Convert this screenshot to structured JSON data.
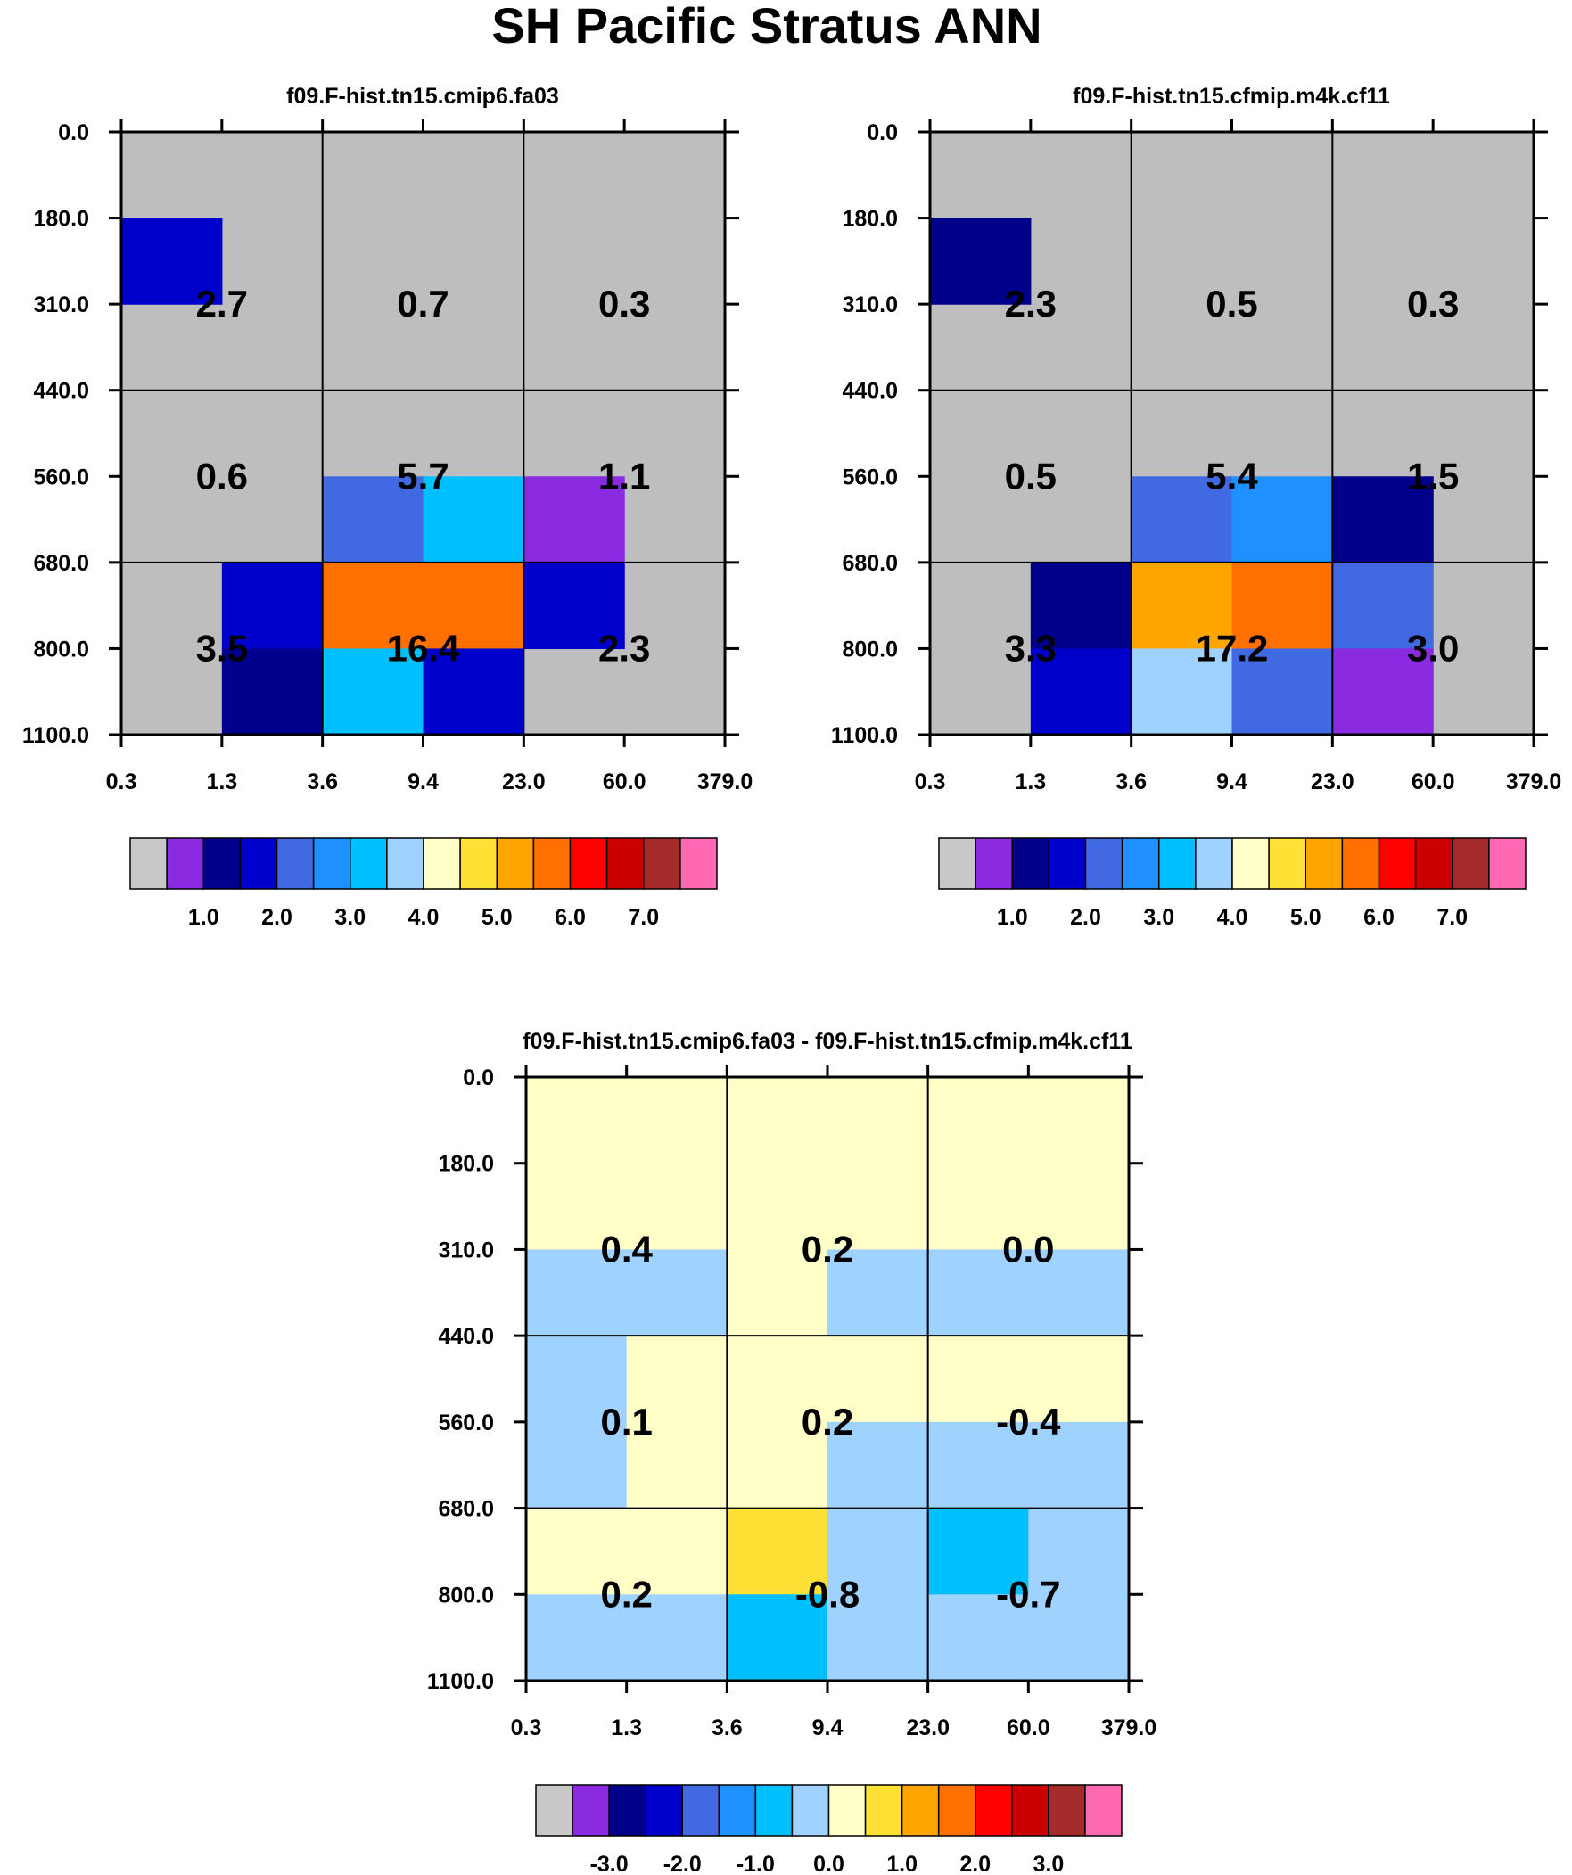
{
  "title": "SH Pacific Stratus ANN",
  "axes": {
    "x_ticks": [
      "0.3",
      "1.3",
      "3.6",
      "9.4",
      "23.0",
      "60.0",
      "379.0"
    ],
    "y_ticks": [
      "0.0",
      "180.0",
      "310.0",
      "440.0",
      "560.0",
      "680.0",
      "800.0",
      "1100.0"
    ]
  },
  "colors": {
    "grey": "#bebebe",
    "levels": [
      "#c8c8c8",
      "#8a2be2",
      "#00008b",
      "#0000cd",
      "#4169e1",
      "#1e90ff",
      "#00bfff",
      "#a0d2ff",
      "#ffffc8",
      "#ffe135",
      "#ffa500",
      "#ff7000",
      "#ff0000",
      "#cd0000",
      "#a52a2a",
      "#ff69b4"
    ]
  },
  "chart_data": [
    {
      "type": "heatmap",
      "title": "f09.F-hist.tn15.cmip6.fa03",
      "x_edges": [
        "0.3",
        "1.3",
        "3.6",
        "9.4",
        "23.0",
        "60.0",
        "379.0"
      ],
      "y_edges": [
        "0.0",
        "180.0",
        "310.0",
        "440.0",
        "560.0",
        "680.0",
        "800.0",
        "1100.0"
      ],
      "cell_levels": [
        [
          -1,
          -1,
          -1,
          -1,
          -1,
          -1
        ],
        [
          3,
          -1,
          -1,
          -1,
          -1,
          -1
        ],
        [
          -1,
          -1,
          -1,
          -1,
          -1,
          -1
        ],
        [
          -1,
          -1,
          -1,
          -1,
          -1,
          -1
        ],
        [
          -1,
          -1,
          4,
          6,
          1,
          -1
        ],
        [
          -1,
          3,
          11,
          11,
          3,
          -1
        ],
        [
          -1,
          2,
          6,
          3,
          -1,
          -1
        ]
      ],
      "box_values": [
        [
          "2.7",
          "0.7",
          "0.3"
        ],
        [
          "0.6",
          "5.7",
          "1.1"
        ],
        [
          "3.5",
          "16.4",
          "2.3"
        ]
      ],
      "colorbar_labels": [
        "1.0",
        "2.0",
        "3.0",
        "4.0",
        "5.0",
        "6.0",
        "7.0"
      ]
    },
    {
      "type": "heatmap",
      "title": "f09.F-hist.tn15.cfmip.m4k.cf11",
      "x_edges": [
        "0.3",
        "1.3",
        "3.6",
        "9.4",
        "23.0",
        "60.0",
        "379.0"
      ],
      "y_edges": [
        "0.0",
        "180.0",
        "310.0",
        "440.0",
        "560.0",
        "680.0",
        "800.0",
        "1100.0"
      ],
      "cell_levels": [
        [
          -1,
          -1,
          -1,
          -1,
          -1,
          -1
        ],
        [
          2,
          -1,
          -1,
          -1,
          -1,
          -1
        ],
        [
          -1,
          -1,
          -1,
          -1,
          -1,
          -1
        ],
        [
          -1,
          -1,
          -1,
          -1,
          -1,
          -1
        ],
        [
          -1,
          -1,
          4,
          5,
          2,
          -1
        ],
        [
          -1,
          2,
          10,
          11,
          4,
          -1
        ],
        [
          -1,
          3,
          7,
          4,
          1,
          -1
        ]
      ],
      "box_values": [
        [
          "2.3",
          "0.5",
          "0.3"
        ],
        [
          "0.5",
          "5.4",
          "1.5"
        ],
        [
          "3.3",
          "17.2",
          "3.0"
        ]
      ],
      "colorbar_labels": [
        "1.0",
        "2.0",
        "3.0",
        "4.0",
        "5.0",
        "6.0",
        "7.0"
      ]
    },
    {
      "type": "heatmap",
      "title": "f09.F-hist.tn15.cmip6.fa03 - f09.F-hist.tn15.cfmip.m4k.cf11",
      "x_edges": [
        "0.3",
        "1.3",
        "3.6",
        "9.4",
        "23.0",
        "60.0",
        "379.0"
      ],
      "y_edges": [
        "0.0",
        "180.0",
        "310.0",
        "440.0",
        "560.0",
        "680.0",
        "800.0",
        "1100.0"
      ],
      "cell_levels": [
        [
          8,
          8,
          8,
          8,
          8,
          8
        ],
        [
          8,
          8,
          8,
          8,
          8,
          8
        ],
        [
          7,
          7,
          8,
          7,
          7,
          7
        ],
        [
          7,
          8,
          8,
          8,
          8,
          8
        ],
        [
          7,
          8,
          8,
          7,
          7,
          7
        ],
        [
          8,
          8,
          9,
          7,
          6,
          7
        ],
        [
          7,
          7,
          6,
          7,
          7,
          7
        ]
      ],
      "box_values": [
        [
          "0.4",
          "0.2",
          "0.0"
        ],
        [
          "0.1",
          "0.2",
          "-0.4"
        ],
        [
          "0.2",
          "-0.8",
          "-0.7"
        ]
      ],
      "colorbar_labels": [
        "-3.0",
        "-2.0",
        "-1.0",
        "0.0",
        "1.0",
        "2.0",
        "3.0"
      ]
    }
  ]
}
